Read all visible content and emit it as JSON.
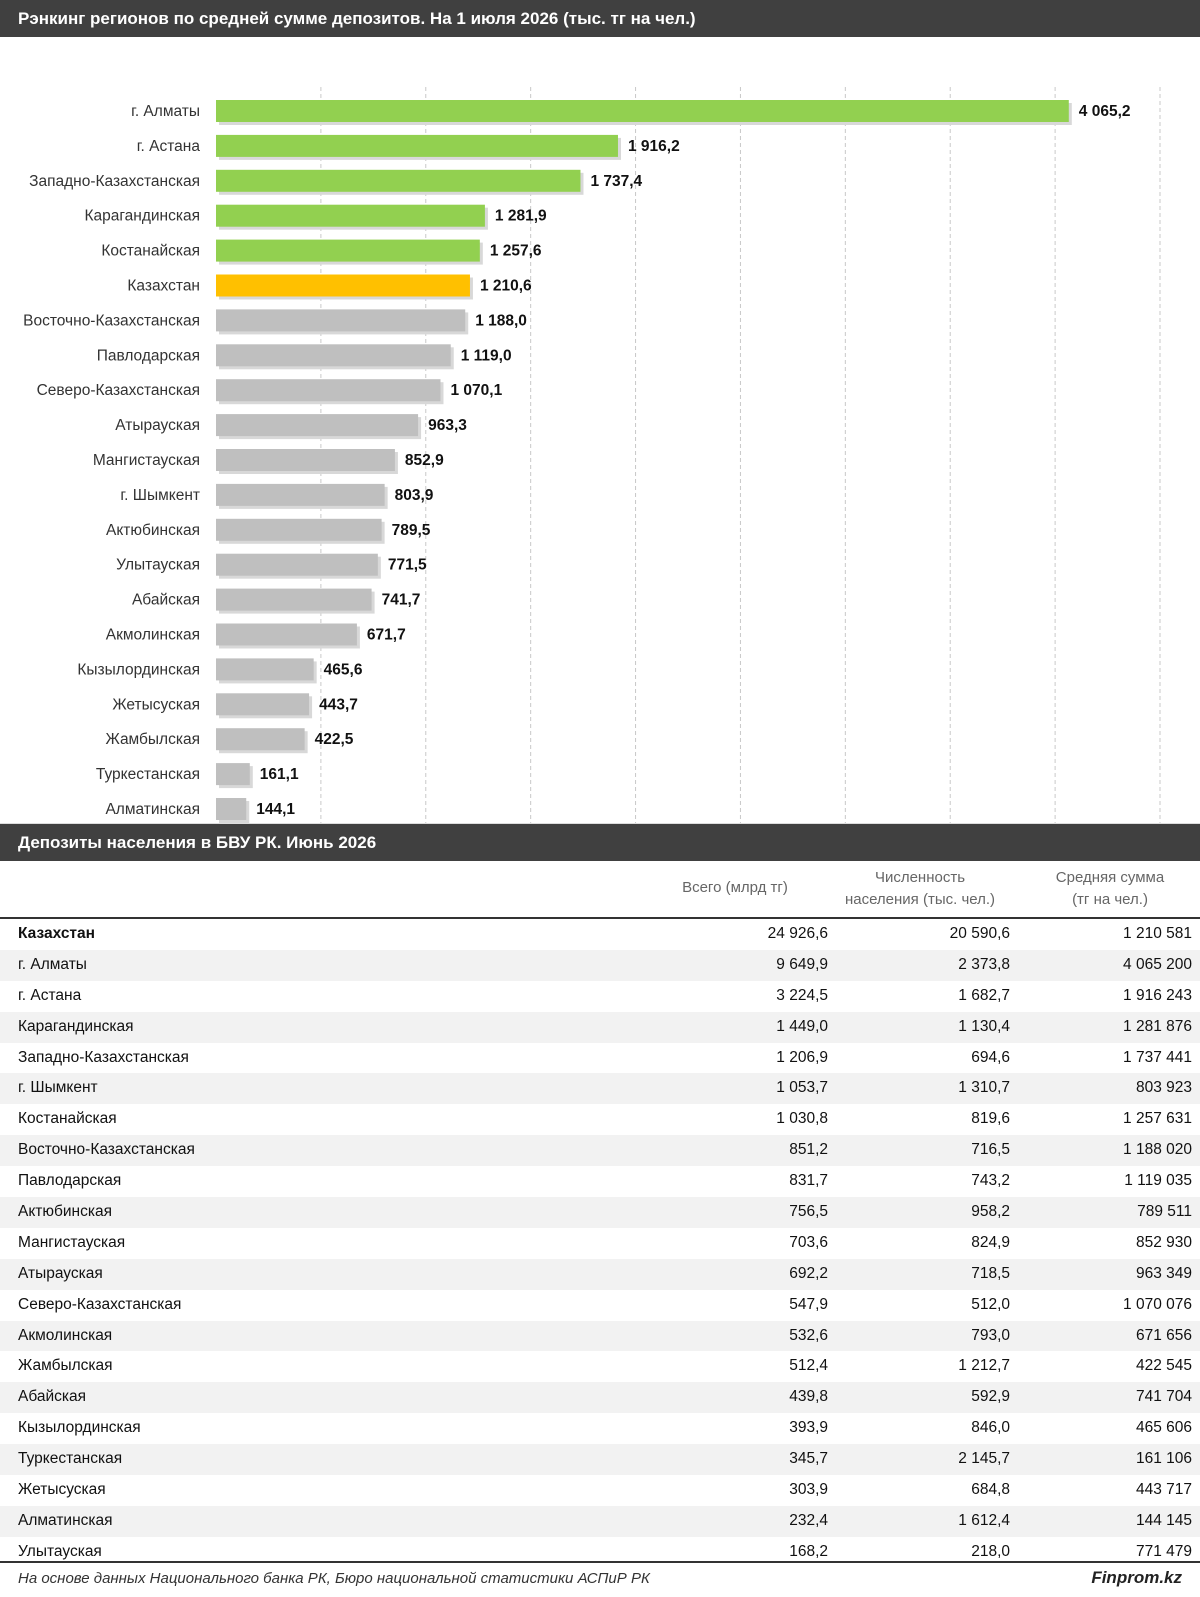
{
  "chart": {
    "title": "Рэнкинг регионов по средней сумме депозитов. На 1 июля 2026 (тыс. тг на чел.)"
  },
  "chart_data": {
    "type": "bar",
    "orientation": "horizontal",
    "title": "Рэнкинг регионов по средней сумме депозитов. На 1 июля 2026 (тыс. тг на чел.)",
    "categories": [
      "г. Алматы",
      "г. Астана",
      "Западно-Казахстанская",
      "Карагандинская",
      "Костанайская",
      "Казахстан",
      "Восточно-Казахстанская",
      "Павлодарская",
      "Северо-Казахстанская",
      "Атырауская",
      "Мангистауская",
      "г. Шымкент",
      "Актюбинская",
      "Улытауская",
      "Абайская",
      "Акмолинская",
      "Кызылординская",
      "Жетысуская",
      "Жамбылская",
      "Туркестанская",
      "Алматинская"
    ],
    "values": [
      4065.2,
      1916.2,
      1737.4,
      1281.9,
      1257.6,
      1210.6,
      1188.0,
      1119.0,
      1070.1,
      963.3,
      852.9,
      803.9,
      789.5,
      771.5,
      741.7,
      671.7,
      465.6,
      443.7,
      422.5,
      161.1,
      144.1
    ],
    "value_labels": [
      "4 065,2",
      "1 916,2",
      "1 737,4",
      "1 281,9",
      "1 257,6",
      "1 210,6",
      "1 188,0",
      "1 119,0",
      "1 070,1",
      "963,3",
      "852,9",
      "803,9",
      "789,5",
      "771,5",
      "741,7",
      "671,7",
      "465,6",
      "443,7",
      "422,5",
      "161,1",
      "144,1"
    ],
    "bar_groups": [
      "above",
      "above",
      "above",
      "above",
      "above",
      "total",
      "below",
      "below",
      "below",
      "below",
      "below",
      "below",
      "below",
      "below",
      "below",
      "below",
      "below",
      "below",
      "below",
      "below",
      "below"
    ],
    "xlim": [
      0,
      4500
    ],
    "gridlines": "vertical dashed",
    "colors": {
      "above": "#92d050",
      "total": "#ffc000",
      "below": "#bfbfbf"
    }
  },
  "table": {
    "title": "Депозиты населения в БВУ РК. Июнь 2026",
    "headers": {
      "col1": "Всего (млрд тг)",
      "col2_line1": "Численность",
      "col2_line2": "населения (тыс. чел.)",
      "col3_line1": "Средняя сумма",
      "col3_line2": "(тг на чел.)"
    },
    "rows": [
      {
        "name": "Казахстан",
        "total": "24 926,6",
        "population": "20 590,6",
        "avg": "1 210 581"
      },
      {
        "name": "г. Алматы",
        "total": "9 649,9",
        "population": "2 373,8",
        "avg": "4 065 200"
      },
      {
        "name": "г. Астана",
        "total": "3 224,5",
        "population": "1 682,7",
        "avg": "1 916 243"
      },
      {
        "name": "Карагандинская",
        "total": "1 449,0",
        "population": "1 130,4",
        "avg": "1 281 876"
      },
      {
        "name": "Западно-Казахстанская",
        "total": "1 206,9",
        "population": "694,6",
        "avg": "1 737 441"
      },
      {
        "name": "г. Шымкент",
        "total": "1 053,7",
        "population": "1 310,7",
        "avg": "803 923"
      },
      {
        "name": "Костанайская",
        "total": "1 030,8",
        "population": "819,6",
        "avg": "1 257 631"
      },
      {
        "name": "Восточно-Казахстанская",
        "total": "851,2",
        "population": "716,5",
        "avg": "1 188 020"
      },
      {
        "name": "Павлодарская",
        "total": "831,7",
        "population": "743,2",
        "avg": "1 119 035"
      },
      {
        "name": "Актюбинская",
        "total": "756,5",
        "population": "958,2",
        "avg": "789 511"
      },
      {
        "name": "Мангистауская",
        "total": "703,6",
        "population": "824,9",
        "avg": "852 930"
      },
      {
        "name": "Атырауская",
        "total": "692,2",
        "population": "718,5",
        "avg": "963 349"
      },
      {
        "name": "Северо-Казахстанская",
        "total": "547,9",
        "population": "512,0",
        "avg": "1 070 076"
      },
      {
        "name": "Акмолинская",
        "total": "532,6",
        "population": "793,0",
        "avg": "671 656"
      },
      {
        "name": "Жамбылская",
        "total": "512,4",
        "population": "1 212,7",
        "avg": "422 545"
      },
      {
        "name": "Абайская",
        "total": "439,8",
        "population": "592,9",
        "avg": "741 704"
      },
      {
        "name": "Кызылординская",
        "total": "393,9",
        "population": "846,0",
        "avg": "465 606"
      },
      {
        "name": "Туркестанская",
        "total": "345,7",
        "population": "2 145,7",
        "avg": "161 106"
      },
      {
        "name": "Жетысуская",
        "total": "303,9",
        "population": "684,8",
        "avg": "443 717"
      },
      {
        "name": "Алматинская",
        "total": "232,4",
        "population": "1 612,4",
        "avg": "144 145"
      },
      {
        "name": "Улытауская",
        "total": "168,2",
        "population": "218,0",
        "avg": "771 479"
      }
    ]
  },
  "footer": {
    "source": "На основе данных Национального банка РК, Бюро национальной статистики АСПиР РК",
    "brand": "Finprom.kz"
  }
}
